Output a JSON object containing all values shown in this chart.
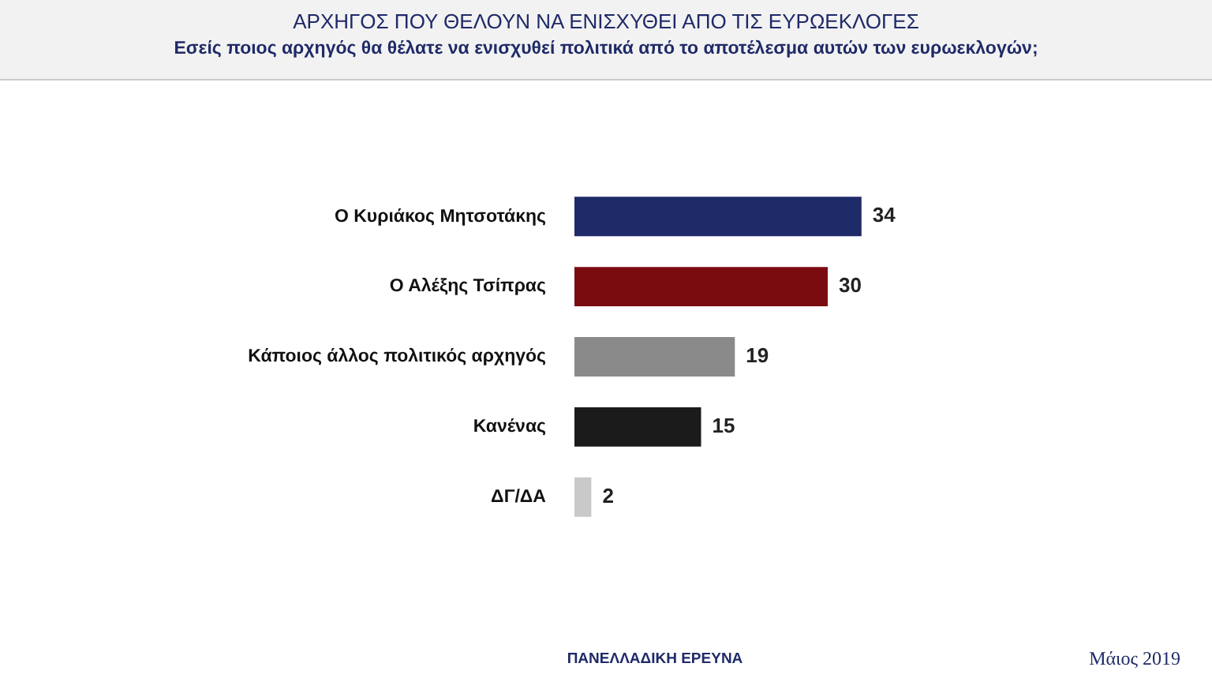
{
  "chart_data": {
    "type": "bar",
    "orientation": "horizontal",
    "title": "ΑΡΧΗΓΟΣ ΠΟΥ ΘΕΛΟΥΝ ΝΑ ΕΝΙΣΧΥΘΕΙ ΑΠΟ ΤΙΣ ΕΥΡΩΕΚΛΟΓΕΣ",
    "subtitle": "Εσείς ποιος αρχηγός θα θέλατε να ενισχυθεί πολιτικά από το αποτέλεσμα αυτών των ευρωεκλογών;",
    "categories": [
      "Ο Κυριάκος Μητσοτάκης",
      "Ο Αλέξης Τσίπρας",
      "Κάποιος άλλος πολιτικός αρχηγός",
      "Κανένας",
      "ΔΓ/ΔΑ"
    ],
    "values": [
      34,
      30,
      19,
      15,
      2
    ],
    "colors": [
      "#1f2a68",
      "#7a0c10",
      "#8a8a8a",
      "#1b1b1b",
      "#c9c9c9"
    ],
    "data_labels": true,
    "annotations": [
      "ΠΑΝΕΛΛΑΔΙΚΗ ΕΡΕΥΝΑ",
      "Μάιος 2019"
    ]
  }
}
